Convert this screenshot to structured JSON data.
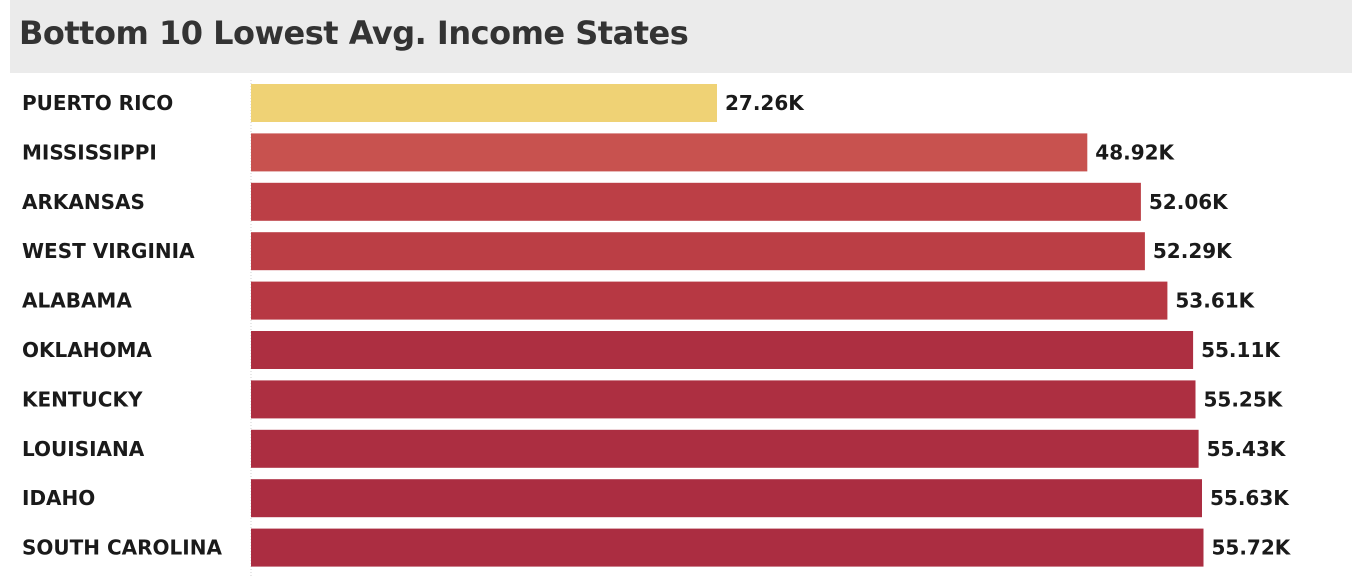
{
  "chart_data": {
    "type": "bar",
    "orientation": "horizontal",
    "title": "Bottom 10 Lowest Avg. Income States",
    "xlabel": "",
    "ylabel": "",
    "grid": false,
    "xlim": [
      0,
      58000
    ],
    "categories": [
      "PUERTO RICO",
      "MISSISSIPPI",
      "ARKANSAS",
      "WEST VIRGINIA",
      "ALABAMA",
      "OKLAHOMA",
      "KENTUCKY",
      "LOUISIANA",
      "IDAHO",
      "SOUTH CAROLINA"
    ],
    "values": [
      27260,
      48920,
      52060,
      52290,
      53610,
      55110,
      55250,
      55430,
      55630,
      55720
    ],
    "value_labels": [
      "27.26K",
      "48.92K",
      "52.06K",
      "52.29K",
      "53.61K",
      "55.11K",
      "55.25K",
      "55.43K",
      "55.63K",
      "55.72K"
    ],
    "colors": [
      "#efd275",
      "#c8524f",
      "#bc3f46",
      "#bb3e45",
      "#b73843",
      "#ad2f41",
      "#ad2f41",
      "#ac2e41",
      "#ab2d41",
      "#ab2d41"
    ]
  }
}
